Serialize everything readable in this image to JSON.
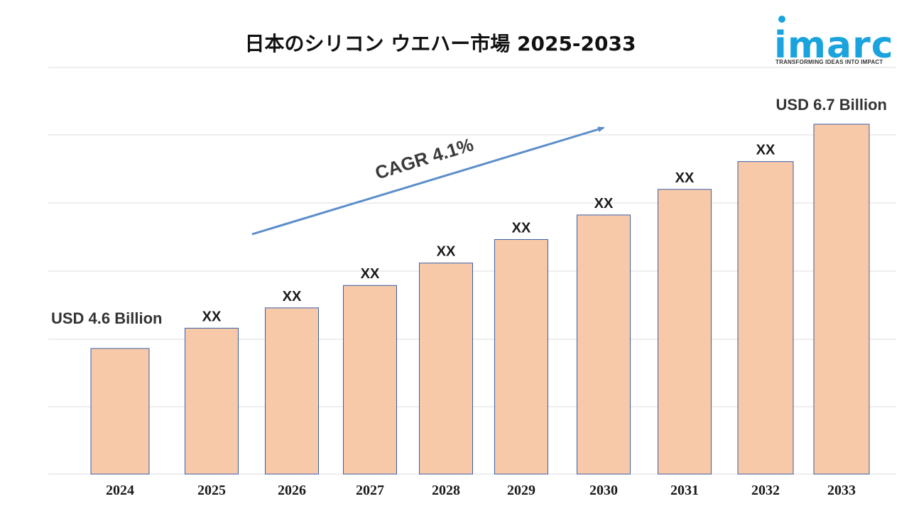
{
  "title": "日本のシリコン ウエハー市場 2025-2033",
  "logo": {
    "word": "imarc",
    "tagline": "TRANSFORMING IDEAS INTO IMPACT",
    "color": "#1aa3dd"
  },
  "colors": {
    "bar_fill": "#f7c9a8",
    "bar_stroke": "#3a5fa8",
    "arrow": "#5b8ec9"
  },
  "chart_data": {
    "type": "bar",
    "categories": [
      "2024",
      "2025",
      "2026",
      "2027",
      "2028",
      "2029",
      "2030",
      "2031",
      "2032",
      "2033"
    ],
    "values": [
      4.6,
      4.79,
      4.98,
      5.19,
      5.4,
      5.62,
      5.85,
      6.09,
      6.35,
      6.7
    ],
    "value_labels": [
      "USD 4.6 Billion",
      "XX",
      "XX",
      "XX",
      "XX",
      "XX",
      "XX",
      "XX",
      "XX",
      "USD 6.7 Billion"
    ],
    "annotation": "CAGR 4.1%",
    "grid": true,
    "legend": "none"
  }
}
